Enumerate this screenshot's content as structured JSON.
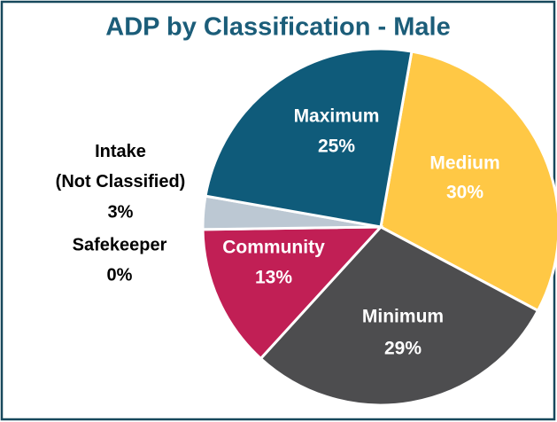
{
  "chart_data": {
    "type": "pie",
    "title": "ADP by Classification - Male",
    "categories": [
      "Medium",
      "Minimum",
      "Community",
      "Safekeeper",
      "Intake (Not Classified)",
      "Maximum"
    ],
    "values": [
      30,
      29,
      13,
      0,
      3,
      25
    ],
    "value_labels": [
      "30%",
      "29%",
      "13%",
      "0%",
      "3%",
      "25%"
    ],
    "colors": [
      "#ffc845",
      "#4d4d4f",
      "#c11f55",
      "#bcc8d3",
      "#bcc8d3",
      "#0f5b7a"
    ]
  }
}
